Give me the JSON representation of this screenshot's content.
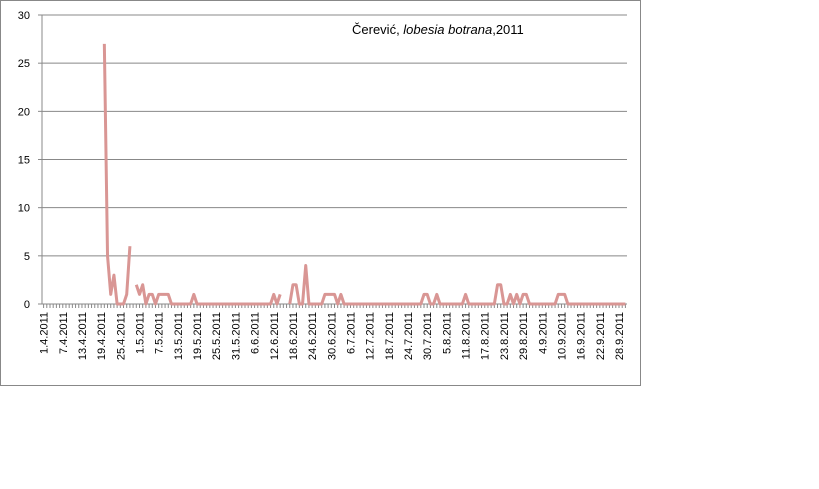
{
  "chart_data": {
    "type": "line",
    "title_parts": [
      "Čerević, ",
      "lobesia botrana",
      ",2011"
    ],
    "categories": [
      "1.4.2011",
      null,
      null,
      null,
      null,
      null,
      "7.4.2011",
      null,
      null,
      null,
      null,
      null,
      "13.4.2011",
      null,
      null,
      null,
      null,
      null,
      "19.4.2011",
      null,
      null,
      null,
      null,
      null,
      "25.4.2011",
      null,
      null,
      null,
      null,
      null,
      "1.5.2011",
      null,
      null,
      null,
      null,
      null,
      "7.5.2011",
      null,
      null,
      null,
      null,
      null,
      "13.5.2011",
      null,
      null,
      null,
      null,
      null,
      "19.5.2011",
      null,
      null,
      null,
      null,
      null,
      "25.5.2011",
      null,
      null,
      null,
      null,
      null,
      "31.5.2011",
      null,
      null,
      null,
      null,
      null,
      "6.6.2011",
      null,
      null,
      null,
      null,
      null,
      "12.6.2011",
      null,
      null,
      null,
      null,
      null,
      "18.6.2011",
      null,
      null,
      null,
      null,
      null,
      "24.6.2011",
      null,
      null,
      null,
      null,
      null,
      "30.6.2011",
      null,
      null,
      null,
      null,
      null,
      "6.7.2011",
      null,
      null,
      null,
      null,
      null,
      "12.7.2011",
      null,
      null,
      null,
      null,
      null,
      "18.7.2011",
      null,
      null,
      null,
      null,
      null,
      "24.7.2011",
      null,
      null,
      null,
      null,
      null,
      "30.7.2011",
      null,
      null,
      null,
      null,
      null,
      "5.8.2011",
      null,
      null,
      null,
      null,
      null,
      "11.8.2011",
      null,
      null,
      null,
      null,
      null,
      "17.8.2011",
      null,
      null,
      null,
      null,
      null,
      "23.8.2011",
      null,
      null,
      null,
      null,
      null,
      "29.8.2011",
      null,
      null,
      null,
      null,
      null,
      "4.9.2011",
      null,
      null,
      null,
      null,
      null,
      "10.9.2011",
      null,
      null,
      null,
      null,
      null,
      "16.9.2011",
      null,
      null,
      null,
      null,
      null,
      "22.9.2011",
      null,
      null,
      null,
      null,
      null,
      "28.9.2011",
      null,
      null
    ],
    "series": [
      {
        "color": "#d99694",
        "values": [
          null,
          null,
          null,
          null,
          null,
          null,
          null,
          null,
          null,
          null,
          null,
          null,
          null,
          null,
          null,
          null,
          null,
          null,
          null,
          27,
          5,
          1,
          3,
          0,
          0,
          0,
          1,
          6,
          null,
          2,
          1,
          2,
          0,
          1,
          1,
          0,
          1,
          1,
          1,
          1,
          0,
          0,
          0,
          0,
          0,
          0,
          0,
          1,
          0,
          0,
          0,
          0,
          0,
          0,
          0,
          0,
          0,
          0,
          0,
          0,
          0,
          0,
          0,
          0,
          0,
          0,
          0,
          0,
          0,
          0,
          0,
          0,
          1,
          0,
          1,
          null,
          null,
          0,
          2,
          2,
          0,
          0,
          4,
          0,
          0,
          0,
          0,
          0,
          1,
          1,
          1,
          1,
          0,
          1,
          0,
          0,
          0,
          0,
          0,
          0,
          0,
          0,
          0,
          0,
          0,
          0,
          0,
          0,
          0,
          0,
          0,
          0,
          0,
          0,
          0,
          0,
          0,
          0,
          0,
          1,
          1,
          0,
          0,
          1,
          0,
          0,
          0,
          0,
          0,
          0,
          0,
          0,
          1,
          0,
          0,
          0,
          0,
          0,
          0,
          0,
          0,
          0,
          2,
          2,
          0,
          0,
          1,
          0,
          1,
          0,
          1,
          1,
          0,
          0,
          0,
          0,
          0,
          0,
          0,
          0,
          0,
          1,
          1,
          1,
          0,
          0,
          0,
          0,
          0,
          0,
          0,
          0,
          0,
          0,
          0,
          0,
          0,
          0,
          0,
          0,
          0,
          0,
          0
        ]
      }
    ],
    "ylim": [
      0,
      30
    ],
    "yticks": [
      0,
      5,
      10,
      15,
      20,
      25,
      30
    ],
    "grid": true
  }
}
